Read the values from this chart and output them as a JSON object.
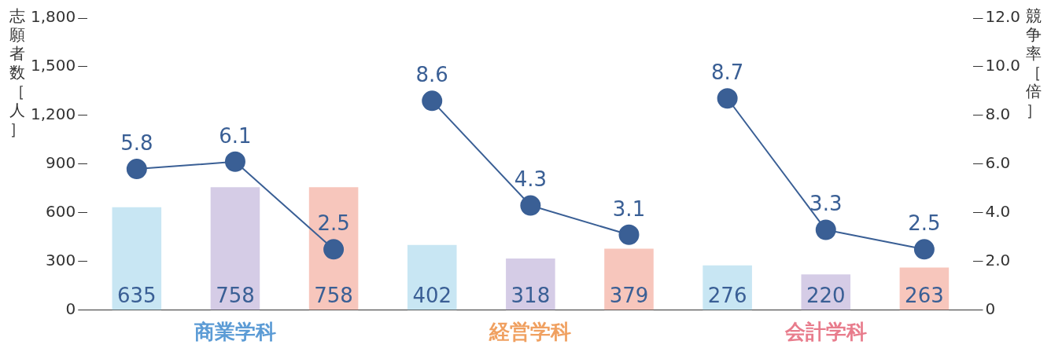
{
  "chart_data": {
    "type": "bar",
    "ylabel": "志願者数［人］",
    "y2label": "競争率［倍］",
    "categories": [
      null,
      "商業学科",
      null,
      null,
      "経営学科",
      null,
      null,
      "会計学科",
      null
    ],
    "values": [
      635,
      758,
      758,
      402,
      318,
      379,
      276,
      220,
      263
    ],
    "colors": [
      "#c8e6f3",
      "#d5cce6",
      "#f7c6bc",
      "#c8e6f3",
      "#d5cce6",
      "#f7c6bc",
      "#c8e6f3",
      "#d5cce6",
      "#f7c6bc"
    ],
    "series": [
      {
        "type": "line",
        "axis": "y2",
        "color": "#3a5f95",
        "values": [
          5.8,
          6.1,
          2.5,
          null,
          null,
          null,
          null,
          null,
          null
        ]
      },
      {
        "type": "line",
        "axis": "y2",
        "color": "#3a5f95",
        "values": [
          null,
          null,
          null,
          8.6,
          4.3,
          3.1,
          null,
          null,
          null
        ]
      },
      {
        "type": "line",
        "axis": "y2",
        "color": "#3a5f95",
        "values": [
          null,
          null,
          null,
          null,
          null,
          null,
          8.7,
          3.3,
          2.5
        ]
      }
    ],
    "ylim": [
      0,
      1800
    ],
    "yticks": [
      0,
      300,
      600,
      900,
      {
        "value": 1200,
        "label": "1,200"
      },
      {
        "value": 1500,
        "label": "1,500"
      },
      {
        "value": 1800,
        "label": "1,800"
      }
    ],
    "y2lim": [
      0,
      12
    ],
    "y2ticks": [
      0,
      {
        "value": 2,
        "label": "2.0"
      },
      {
        "value": 4,
        "label": "4.0"
      },
      {
        "value": 6,
        "label": "6.0"
      },
      {
        "value": 8,
        "label": "8.0"
      },
      {
        "value": 10,
        "label": "10.0"
      },
      {
        "value": 12,
        "label": "12.0"
      }
    ],
    "marker": "circle",
    "data_labels": true,
    "grid": false,
    "legend": false
  }
}
